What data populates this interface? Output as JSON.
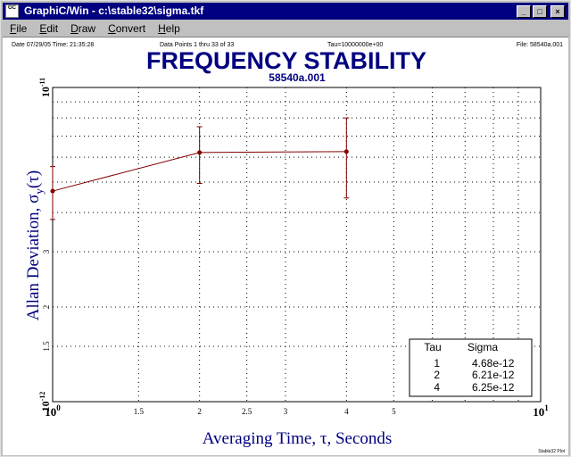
{
  "window": {
    "title": "GraphiC/Win - c:\\stable32\\sigma.tkf",
    "icon_label": "GC",
    "buttons": {
      "minimize": "_",
      "maximize": "□",
      "close": "×"
    }
  },
  "menu": [
    {
      "first": "F",
      "rest": "ile"
    },
    {
      "first": "E",
      "rest": "dit"
    },
    {
      "first": "D",
      "rest": "raw"
    },
    {
      "first": "C",
      "rest": "onvert"
    },
    {
      "first": "H",
      "rest": "elp"
    }
  ],
  "header_info": {
    "date": "Date 07/29/05 Time: 21:35:28",
    "points": "Data Points 1 thru 33 of 33",
    "tau": "Tau=10000000e+00",
    "file": "File: 58540a.001"
  },
  "footer": "Stable32 Plot",
  "chart_data": {
    "type": "line",
    "title": "FREQUENCY STABILITY",
    "subtitle": "58540a.001",
    "xlabel": "Averaging Time, τ, Seconds",
    "ylabel_main": "Allan Deviation, σ",
    "ylabel_sub": "y",
    "ylabel_tail": "(τ)",
    "x_scale": "log",
    "y_scale": "log",
    "xlim": [
      1,
      10
    ],
    "ylim": [
      1e-12,
      1e-11
    ],
    "grid": true,
    "x_tick_labels": [
      {
        "value": 1,
        "label": "10",
        "sup": "0",
        "major": true
      },
      {
        "value": 1.5,
        "label": "1.5",
        "sup": "",
        "major": false
      },
      {
        "value": 2,
        "label": "2",
        "sup": "",
        "major": false
      },
      {
        "value": 2.5,
        "label": "2.5",
        "sup": "",
        "major": false
      },
      {
        "value": 3,
        "label": "3",
        "sup": "",
        "major": false
      },
      {
        "value": 4,
        "label": "4",
        "sup": "",
        "major": false
      },
      {
        "value": 5,
        "label": "5",
        "sup": "",
        "major": false
      },
      {
        "value": 10,
        "label": "10",
        "sup": "1",
        "major": true
      }
    ],
    "y_tick_labels": [
      {
        "value": 1e-12,
        "label": "10",
        "sup": "-12",
        "major": true
      },
      {
        "value": 1.5e-12,
        "label": "1.5",
        "sup": "",
        "major": false
      },
      {
        "value": 2e-12,
        "label": "2",
        "sup": "",
        "major": false
      },
      {
        "value": 3e-12,
        "label": "3",
        "sup": "",
        "major": false
      },
      {
        "value": 1e-11,
        "label": "10",
        "sup": "-11",
        "major": true
      }
    ],
    "x_grid_values": [
      1.5,
      2,
      2.5,
      3,
      4,
      5,
      6,
      7,
      8,
      9
    ],
    "y_grid_values": [
      1.5e-12,
      2e-12,
      3e-12,
      4e-12,
      5e-12,
      6e-12,
      7e-12,
      8e-12,
      9e-12
    ],
    "series": [
      {
        "tau": [
          1,
          2,
          4
        ],
        "sigma": [
          4.68e-12,
          6.21e-12,
          6.25e-12
        ],
        "err_low": [
          3.8e-12,
          4.95e-12,
          4.45e-12
        ],
        "err_high": [
          5.6e-12,
          7.5e-12,
          8e-12
        ]
      }
    ],
    "table": {
      "headers": [
        "Tau",
        "Sigma"
      ],
      "rows": [
        [
          "1",
          "4.68e-12"
        ],
        [
          "2",
          "6.21e-12"
        ],
        [
          "4",
          "6.25e-12"
        ]
      ],
      "placement": "bottom-right"
    },
    "colors": {
      "title": "#000080",
      "series": "#800000",
      "axes": "#000000",
      "grid": "#000000"
    }
  }
}
